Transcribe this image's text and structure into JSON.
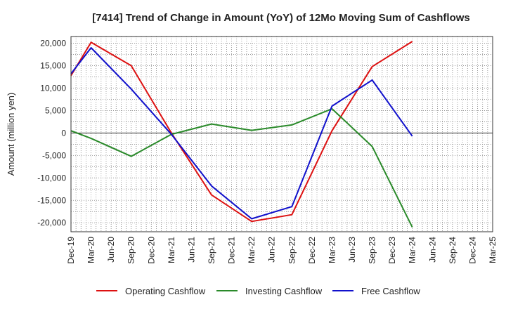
{
  "chart_data": {
    "type": "line",
    "title": "[7414]  Trend of Change in Amount (YoY) of 12Mo Moving Sum of Cashflows",
    "xlabel": "",
    "ylabel": "Amount (million yen)",
    "ylim": [
      -22000,
      21500
    ],
    "yticks": [
      20000,
      15000,
      10000,
      5000,
      0,
      -5000,
      -10000,
      -15000,
      -20000
    ],
    "ytick_labels": [
      "20,000",
      "15,000",
      "10,000",
      "5,000",
      "0",
      "-5,000",
      "-10,000",
      "-15,000",
      "-20,000"
    ],
    "categories": [
      "Dec-19",
      "Mar-20",
      "Jun-20",
      "Sep-20",
      "Dec-20",
      "Mar-21",
      "Jun-21",
      "Sep-21",
      "Dec-21",
      "Mar-22",
      "Jun-22",
      "Sep-22",
      "Dec-22",
      "Mar-23",
      "Jun-23",
      "Sep-23",
      "Dec-23",
      "Mar-24",
      "Jun-24",
      "Sep-24",
      "Dec-24",
      "Mar-25"
    ],
    "grid": true,
    "legend_position": "bottom",
    "series": [
      {
        "name": "Operating Cashflow",
        "color": "#dd1111",
        "values": [
          12800,
          20200,
          null,
          15000,
          null,
          0,
          null,
          -13800,
          null,
          -19700,
          null,
          -18200,
          null,
          500,
          null,
          14800,
          null,
          20400,
          null,
          null,
          null,
          null
        ]
      },
      {
        "name": "Investing Cashflow",
        "color": "#2a8a2a",
        "values": [
          500,
          -1200,
          null,
          -5200,
          null,
          -300,
          null,
          2000,
          null,
          600,
          null,
          1800,
          null,
          5400,
          null,
          -3000,
          null,
          -21000,
          null,
          null,
          null,
          null
        ]
      },
      {
        "name": "Free Cashflow",
        "color": "#1111cc",
        "values": [
          13200,
          19000,
          null,
          9800,
          null,
          -300,
          null,
          -11800,
          null,
          -19100,
          null,
          -16400,
          null,
          6000,
          null,
          11800,
          null,
          -700,
          null,
          null,
          null,
          null
        ]
      }
    ]
  }
}
